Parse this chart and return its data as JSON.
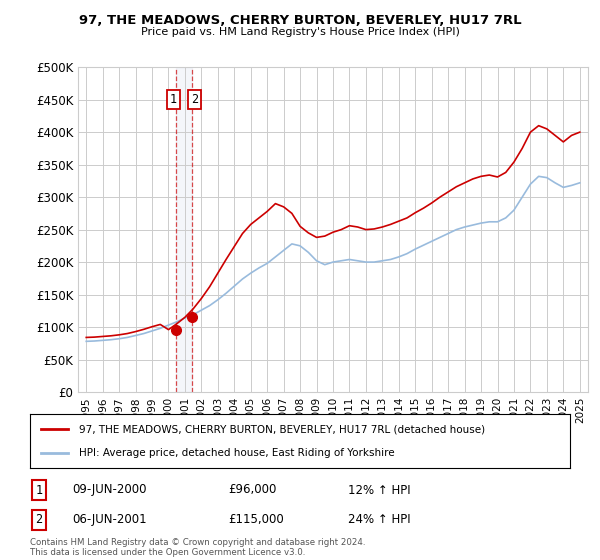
{
  "title": "97, THE MEADOWS, CHERRY BURTON, BEVERLEY, HU17 7RL",
  "subtitle": "Price paid vs. HM Land Registry's House Price Index (HPI)",
  "legend_line1": "97, THE MEADOWS, CHERRY BURTON, BEVERLEY, HU17 7RL (detached house)",
  "legend_line2": "HPI: Average price, detached house, East Riding of Yorkshire",
  "table_rows": [
    {
      "num": "1",
      "date": "09-JUN-2000",
      "price": "£96,000",
      "hpi": "12% ↑ HPI"
    },
    {
      "num": "2",
      "date": "06-JUN-2001",
      "price": "£115,000",
      "hpi": "24% ↑ HPI"
    }
  ],
  "footnote": "Contains HM Land Registry data © Crown copyright and database right 2024.\nThis data is licensed under the Open Government Licence v3.0.",
  "sale1_year": 2000.44,
  "sale1_price": 96000,
  "sale2_year": 2001.44,
  "sale2_price": 115000,
  "vline1_year": 2000.44,
  "vline2_year": 2001.44,
  "red_line_color": "#cc0000",
  "blue_line_color": "#99bbdd",
  "vline_color": "#cc0000",
  "marker_color": "#cc0000",
  "grid_color": "#cccccc",
  "background_color": "#ffffff",
  "ylim": [
    0,
    500000
  ],
  "xlim_start": 1994.5,
  "xlim_end": 2025.5,
  "yticks": [
    0,
    50000,
    100000,
    150000,
    200000,
    250000,
    300000,
    350000,
    400000,
    450000,
    500000
  ],
  "xtick_years": [
    1995,
    1996,
    1997,
    1998,
    1999,
    2000,
    2001,
    2002,
    2003,
    2004,
    2005,
    2006,
    2007,
    2008,
    2009,
    2010,
    2011,
    2012,
    2013,
    2014,
    2015,
    2016,
    2017,
    2018,
    2019,
    2020,
    2021,
    2022,
    2023,
    2024,
    2025
  ],
  "hpi_years": [
    1995,
    1995.5,
    1996,
    1996.5,
    1997,
    1997.5,
    1998,
    1998.5,
    1999,
    1999.5,
    2000,
    2000.5,
    2001,
    2001.5,
    2002,
    2002.5,
    2003,
    2003.5,
    2004,
    2004.5,
    2005,
    2005.5,
    2006,
    2006.5,
    2007,
    2007.5,
    2008,
    2008.5,
    2009,
    2009.5,
    2010,
    2010.5,
    2011,
    2011.5,
    2012,
    2012.5,
    2013,
    2013.5,
    2014,
    2014.5,
    2015,
    2015.5,
    2016,
    2016.5,
    2017,
    2017.5,
    2018,
    2018.5,
    2019,
    2019.5,
    2020,
    2020.5,
    2021,
    2021.5,
    2022,
    2022.5,
    2023,
    2023.5,
    2024,
    2024.5,
    2025
  ],
  "hpi_values": [
    78000,
    78500,
    79500,
    80500,
    82000,
    84000,
    87000,
    90000,
    94000,
    98000,
    103000,
    108000,
    114000,
    119000,
    126000,
    133000,
    142000,
    152000,
    163000,
    174000,
    183000,
    191000,
    198000,
    208000,
    218000,
    228000,
    225000,
    215000,
    202000,
    196000,
    200000,
    202000,
    204000,
    202000,
    200000,
    200000,
    202000,
    204000,
    208000,
    213000,
    220000,
    226000,
    232000,
    238000,
    244000,
    250000,
    254000,
    257000,
    260000,
    262000,
    262000,
    268000,
    280000,
    300000,
    320000,
    332000,
    330000,
    322000,
    315000,
    318000,
    322000
  ],
  "red_values": [
    84000,
    84500,
    85500,
    86500,
    88000,
    90000,
    93000,
    96500,
    100500,
    104000,
    96000,
    105000,
    115000,
    128000,
    144000,
    162000,
    183000,
    204000,
    224000,
    244000,
    258000,
    268000,
    278000,
    290000,
    285000,
    275000,
    255000,
    245000,
    238000,
    240000,
    246000,
    250000,
    256000,
    254000,
    250000,
    251000,
    254000,
    258000,
    263000,
    268000,
    276000,
    283000,
    291000,
    300000,
    308000,
    316000,
    322000,
    328000,
    332000,
    334000,
    331000,
    338000,
    354000,
    375000,
    400000,
    410000,
    405000,
    395000,
    385000,
    395000,
    400000
  ]
}
